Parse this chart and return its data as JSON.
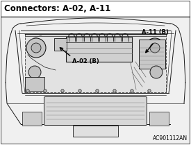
{
  "title": "Connectors: A-02, A-11",
  "label_a02": "A-02 (B)",
  "label_a11": "A-11 (B)",
  "code": "AC901112AN",
  "bg_color": "#ffffff",
  "fig_width": 2.75,
  "fig_height": 2.09,
  "dpi": 100,
  "title_fontsize": 8.5,
  "label_fontsize": 6.0,
  "code_fontsize": 5.5
}
